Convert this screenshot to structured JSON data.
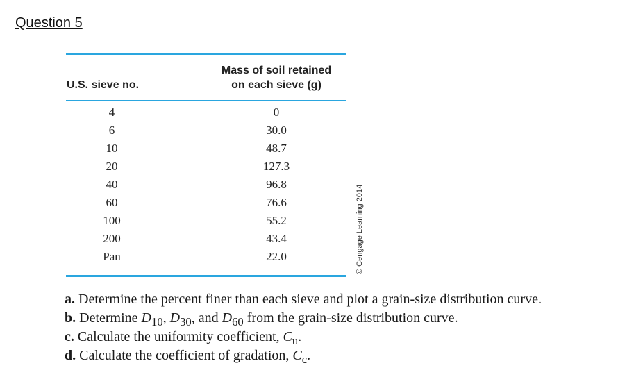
{
  "question_title": "Question 5",
  "table": {
    "headers": {
      "sieve": "U.S. sieve no.",
      "mass_line1": "Mass of soil retained",
      "mass_line2": "on each sieve (g)"
    },
    "rows": [
      {
        "sieve": "4",
        "mass": "0"
      },
      {
        "sieve": "6",
        "mass": "30.0"
      },
      {
        "sieve": "10",
        "mass": "48.7"
      },
      {
        "sieve": "20",
        "mass": "127.3"
      },
      {
        "sieve": "40",
        "mass": "96.8"
      },
      {
        "sieve": "60",
        "mass": "76.6"
      },
      {
        "sieve": "100",
        "mass": "55.2"
      },
      {
        "sieve": "200",
        "mass": "43.4"
      },
      {
        "sieve": "Pan",
        "mass": "22.0"
      }
    ],
    "credit": "© Cengage Learning 2014",
    "rule_color": "#2aa6df"
  },
  "tasks": {
    "a": {
      "label": "a.",
      "text": "Determine the percent finer than each sieve and plot a grain-size distribution curve."
    },
    "b": {
      "label": "b.",
      "text_before": "Determine ",
      "d10": "D",
      "d10_sub": "10",
      "sep1": ", ",
      "d30": "D",
      "d30_sub": "30",
      "sep2": ", and ",
      "d60": "D",
      "d60_sub": "60",
      "text_after": " from the grain-size distribution curve."
    },
    "c": {
      "label": "c.",
      "text": "Calculate the uniformity coefficient, ",
      "sym": "C",
      "sub": "u",
      "end": "."
    },
    "d": {
      "label": "d.",
      "text": "Calculate the coefficient of gradation, ",
      "sym": "C",
      "sub": "c",
      "end": "."
    }
  }
}
